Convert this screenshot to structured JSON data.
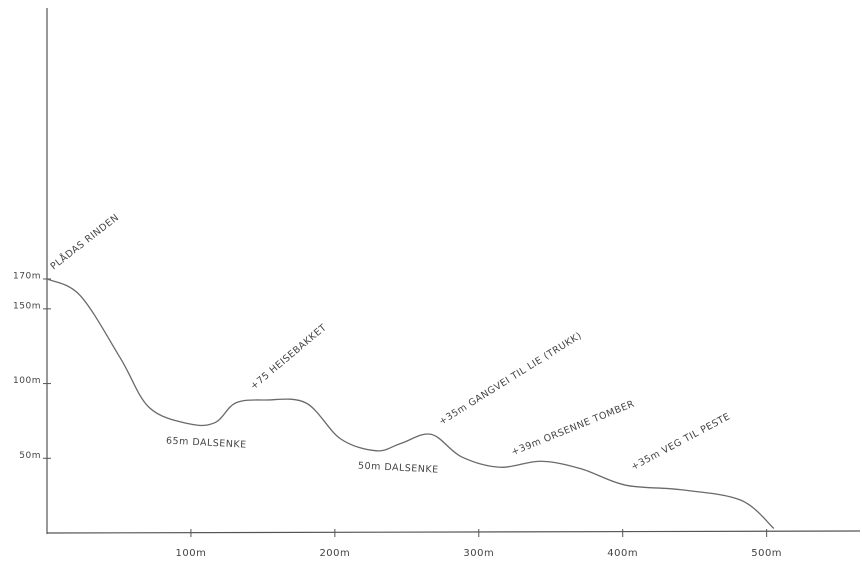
{
  "chart_data": {
    "type": "line",
    "x": [
      0,
      23,
      51,
      71,
      99,
      117,
      131,
      152,
      180,
      204,
      229,
      246,
      267,
      288,
      315,
      343,
      371,
      402,
      440,
      482,
      505
    ],
    "values": [
      170,
      159,
      117,
      84,
      73,
      74,
      87,
      89,
      87,
      63,
      55,
      60,
      66,
      51,
      44,
      48,
      43,
      32,
      29,
      22,
      3
    ],
    "color": "#6a6a6a",
    "xlim": [
      0,
      560
    ],
    "ylim": [
      0,
      350
    ],
    "xticks": [
      {
        "value": 100,
        "label": "100m"
      },
      {
        "value": 200,
        "label": "200m"
      },
      {
        "value": 300,
        "label": "300m"
      },
      {
        "value": 400,
        "label": "400m"
      },
      {
        "value": 500,
        "label": "500m"
      }
    ],
    "yticks": [
      {
        "value": 50,
        "label": "50m"
      },
      {
        "value": 100,
        "label": "100m"
      },
      {
        "value": 150,
        "label": "150m"
      },
      {
        "value": 170,
        "label": "170m"
      }
    ],
    "annotations": [
      "PLÅDAS RINDEN",
      "+75 HEISEBAKKET",
      "65m DALSENKE",
      "50m DALSENKE",
      "+35m GANGVEI TIL LIE (TRUKK)",
      "+39m ORSENNE TOMBER",
      "+35m VEG TIL PESTE"
    ]
  }
}
